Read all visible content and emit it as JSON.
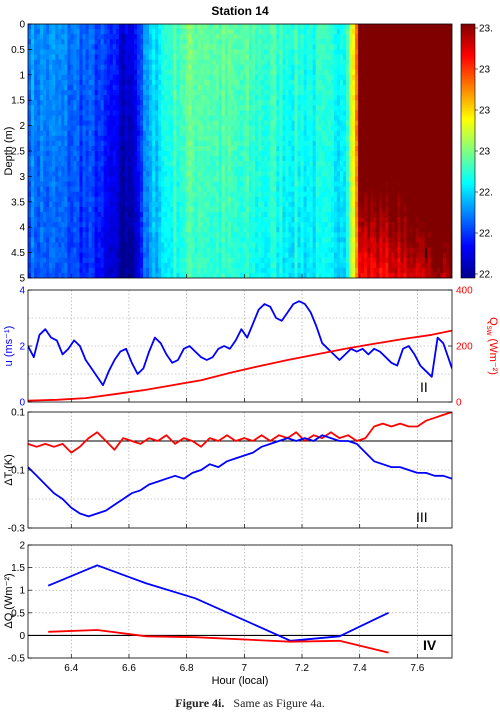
{
  "caption": {
    "label": "Figure 4i.",
    "text": "Same as Figure 4a."
  },
  "chart_data": [
    {
      "type": "heatmap",
      "panel": "I",
      "title": "Station 14",
      "ylabel": "Depth (m)",
      "ylim": [
        5,
        0
      ],
      "xlim": [
        6.25,
        7.72
      ],
      "yticks": [
        "0",
        "0.5",
        "1",
        "1.5",
        "2",
        "2.5",
        "3",
        "3.5",
        "4",
        "4.5",
        "5"
      ],
      "colorbar_ticks": [
        "23.",
        "23",
        "23",
        "23",
        "22.",
        "22.",
        "22."
      ],
      "colormap": [
        "#00008f",
        "#0000ff",
        "#0080ff",
        "#00ffff",
        "#80ff80",
        "#ffff00",
        "#ff8000",
        "#ff0000",
        "#800000"
      ],
      "column_temperature_rel": [
        {
          "x": 6.25,
          "v": 0.28
        },
        {
          "x": 6.3,
          "v": 0.27
        },
        {
          "x": 6.35,
          "v": 0.26
        },
        {
          "x": 6.4,
          "v": 0.25
        },
        {
          "x": 6.45,
          "v": 0.22
        },
        {
          "x": 6.5,
          "v": 0.2
        },
        {
          "x": 6.55,
          "v": 0.14
        },
        {
          "x": 6.58,
          "v": 0.08
        },
        {
          "x": 6.61,
          "v": 0.12
        },
        {
          "x": 6.65,
          "v": 0.25
        },
        {
          "x": 6.7,
          "v": 0.38
        },
        {
          "x": 6.75,
          "v": 0.45
        },
        {
          "x": 6.8,
          "v": 0.48
        },
        {
          "x": 6.85,
          "v": 0.5
        },
        {
          "x": 6.9,
          "v": 0.47
        },
        {
          "x": 6.95,
          "v": 0.46
        },
        {
          "x": 7.0,
          "v": 0.45
        },
        {
          "x": 7.05,
          "v": 0.44
        },
        {
          "x": 7.1,
          "v": 0.44
        },
        {
          "x": 7.15,
          "v": 0.43
        },
        {
          "x": 7.2,
          "v": 0.42
        },
        {
          "x": 7.25,
          "v": 0.41
        },
        {
          "x": 7.3,
          "v": 0.4
        },
        {
          "x": 7.35,
          "v": 0.42
        },
        {
          "x": 7.4,
          "v": 0.86
        },
        {
          "x": 7.45,
          "v": 0.87
        },
        {
          "x": 7.5,
          "v": 0.88
        },
        {
          "x": 7.55,
          "v": 0.89
        },
        {
          "x": 7.6,
          "v": 0.92
        },
        {
          "x": 7.65,
          "v": 0.96
        },
        {
          "x": 7.72,
          "v": 0.97
        }
      ],
      "annotation": "I"
    },
    {
      "type": "line",
      "panel": "II",
      "ylabel": "u (ms⁻¹)",
      "y2label": "Q",
      "y2label_sub": "sw",
      "y2label_unit": " (Wm⁻²)",
      "xlim": [
        6.25,
        7.72
      ],
      "ylim": [
        0,
        4
      ],
      "y2lim": [
        0,
        400
      ],
      "yticks": [
        "0",
        "2",
        "4"
      ],
      "y2ticks": [
        "0",
        "200",
        "400"
      ],
      "series": [
        {
          "axis": "left",
          "color": "#0000ff",
          "x": [
            6.25,
            6.27,
            6.29,
            6.31,
            6.33,
            6.35,
            6.37,
            6.39,
            6.41,
            6.43,
            6.45,
            6.47,
            6.49,
            6.51,
            6.53,
            6.55,
            6.57,
            6.59,
            6.61,
            6.63,
            6.65,
            6.67,
            6.69,
            6.71,
            6.73,
            6.75,
            6.77,
            6.79,
            6.81,
            6.83,
            6.85,
            6.87,
            6.89,
            6.91,
            6.93,
            6.95,
            6.97,
            6.99,
            7.01,
            7.03,
            7.05,
            7.07,
            7.09,
            7.11,
            7.13,
            7.15,
            7.17,
            7.19,
            7.21,
            7.23,
            7.25,
            7.27,
            7.29,
            7.31,
            7.33,
            7.35,
            7.37,
            7.39,
            7.41,
            7.43,
            7.45,
            7.47,
            7.49,
            7.51,
            7.53,
            7.55,
            7.57,
            7.59,
            7.61,
            7.63,
            7.65,
            7.67,
            7.69,
            7.72
          ],
          "y": [
            2.0,
            1.6,
            2.4,
            2.6,
            2.3,
            2.2,
            1.7,
            1.9,
            2.2,
            2.0,
            1.5,
            1.2,
            0.9,
            0.6,
            1.1,
            1.5,
            1.8,
            1.9,
            1.4,
            1.0,
            1.2,
            1.8,
            2.3,
            2.1,
            1.7,
            1.4,
            1.5,
            1.9,
            2.0,
            1.8,
            1.6,
            1.5,
            1.6,
            1.9,
            2.0,
            1.9,
            2.2,
            2.6,
            2.3,
            2.8,
            3.3,
            3.5,
            3.4,
            3.0,
            2.9,
            3.2,
            3.5,
            3.6,
            3.5,
            3.2,
            2.7,
            2.1,
            1.9,
            1.7,
            1.5,
            1.7,
            1.9,
            1.8,
            1.9,
            1.7,
            1.9,
            1.8,
            1.6,
            1.4,
            1.3,
            1.9,
            2.0,
            1.7,
            1.3,
            1.1,
            0.9,
            2.3,
            2.1,
            1.2
          ]
        },
        {
          "axis": "right",
          "color": "#ff0000",
          "x": [
            6.25,
            6.35,
            6.45,
            6.55,
            6.65,
            6.75,
            6.85,
            6.95,
            7.05,
            7.15,
            7.25,
            7.35,
            7.45,
            7.55,
            7.65,
            7.72
          ],
          "y": [
            5,
            8,
            14,
            28,
            42,
            60,
            78,
            104,
            128,
            150,
            170,
            190,
            208,
            225,
            240,
            255
          ]
        }
      ],
      "annotation": "II"
    },
    {
      "type": "line",
      "panel": "III",
      "ylabel": "ΔT (K)",
      "xlim": [
        6.25,
        7.72
      ],
      "ylim": [
        -0.3,
        0.1
      ],
      "yticks": [
        "0.1",
        "-0.1",
        "-0.3"
      ],
      "ytick_values": [
        0.1,
        -0.1,
        -0.3
      ],
      "zero_line": 0,
      "series": [
        {
          "color": "#ff0000",
          "x": [
            6.25,
            6.28,
            6.31,
            6.34,
            6.37,
            6.4,
            6.43,
            6.46,
            6.49,
            6.52,
            6.55,
            6.58,
            6.61,
            6.64,
            6.67,
            6.7,
            6.73,
            6.76,
            6.79,
            6.82,
            6.85,
            6.88,
            6.91,
            6.94,
            6.97,
            7.0,
            7.03,
            7.06,
            7.09,
            7.12,
            7.15,
            7.18,
            7.21,
            7.24,
            7.27,
            7.3,
            7.33,
            7.36,
            7.39,
            7.42,
            7.45,
            7.48,
            7.51,
            7.54,
            7.57,
            7.6,
            7.63,
            7.66,
            7.69,
            7.72
          ],
          "y": [
            -0.01,
            -0.02,
            -0.01,
            -0.02,
            -0.01,
            -0.04,
            -0.02,
            0.01,
            0.03,
            0.0,
            -0.03,
            0.01,
            0.0,
            -0.01,
            0.01,
            0.0,
            0.02,
            -0.01,
            0.01,
            0.0,
            -0.02,
            0.01,
            0.0,
            0.02,
            0.0,
            0.01,
            0.0,
            0.02,
            0.0,
            0.02,
            0.01,
            0.03,
            0.0,
            0.02,
            0.01,
            0.03,
            0.01,
            0.02,
            0.0,
            0.01,
            0.05,
            0.06,
            0.05,
            0.06,
            0.05,
            0.05,
            0.07,
            0.08,
            0.09,
            0.1
          ]
        },
        {
          "color": "#0000ff",
          "x": [
            6.25,
            6.28,
            6.31,
            6.34,
            6.37,
            6.4,
            6.43,
            6.46,
            6.49,
            6.52,
            6.55,
            6.58,
            6.61,
            6.64,
            6.67,
            6.7,
            6.73,
            6.76,
            6.79,
            6.82,
            6.85,
            6.88,
            6.91,
            6.94,
            6.97,
            7.0,
            7.03,
            7.06,
            7.09,
            7.12,
            7.15,
            7.18,
            7.21,
            7.24,
            7.27,
            7.3,
            7.33,
            7.36,
            7.39,
            7.42,
            7.45,
            7.48,
            7.51,
            7.54,
            7.57,
            7.6,
            7.63,
            7.66,
            7.69,
            7.72
          ],
          "y": [
            -0.09,
            -0.12,
            -0.15,
            -0.18,
            -0.2,
            -0.23,
            -0.25,
            -0.26,
            -0.25,
            -0.24,
            -0.22,
            -0.2,
            -0.18,
            -0.17,
            -0.15,
            -0.14,
            -0.13,
            -0.12,
            -0.13,
            -0.11,
            -0.1,
            -0.08,
            -0.09,
            -0.07,
            -0.06,
            -0.05,
            -0.04,
            -0.02,
            -0.01,
            0.0,
            0.01,
            0.0,
            0.01,
            0.0,
            0.02,
            0.01,
            0.0,
            0.0,
            -0.01,
            -0.04,
            -0.07,
            -0.08,
            -0.09,
            -0.09,
            -0.1,
            -0.11,
            -0.11,
            -0.12,
            -0.12,
            -0.13
          ]
        }
      ],
      "annotation": "III"
    },
    {
      "type": "line",
      "panel": "IV",
      "ylabel": "ΔQ (Wm⁻²)",
      "xlabel": "Hour (local)",
      "xlim": [
        6.25,
        7.72
      ],
      "ylim": [
        -0.5,
        2
      ],
      "yticks": [
        "2",
        "1.5",
        "1",
        "0.5",
        "0",
        "-0.5"
      ],
      "ytick_values": [
        2,
        1.5,
        1,
        0.5,
        0,
        -0.5
      ],
      "xticks": [
        "6.4",
        "6.6",
        "6.8",
        "7",
        "7.2",
        "7.4",
        "7.6"
      ],
      "xtick_values": [
        6.4,
        6.6,
        6.8,
        7.0,
        7.2,
        7.4,
        7.6
      ],
      "zero_line": 0,
      "series": [
        {
          "color": "#0000ff",
          "x": [
            6.32,
            6.49,
            6.66,
            6.83,
            7.16,
            7.33,
            7.5
          ],
          "y": [
            1.1,
            1.55,
            1.15,
            0.82,
            -0.12,
            -0.02,
            0.5
          ]
        },
        {
          "color": "#ff0000",
          "x": [
            6.32,
            6.49,
            6.66,
            6.83,
            7.16,
            7.33,
            7.5
          ],
          "y": [
            0.08,
            0.12,
            -0.02,
            -0.04,
            -0.14,
            -0.12,
            -0.38
          ]
        }
      ],
      "annotation": "IV"
    }
  ]
}
